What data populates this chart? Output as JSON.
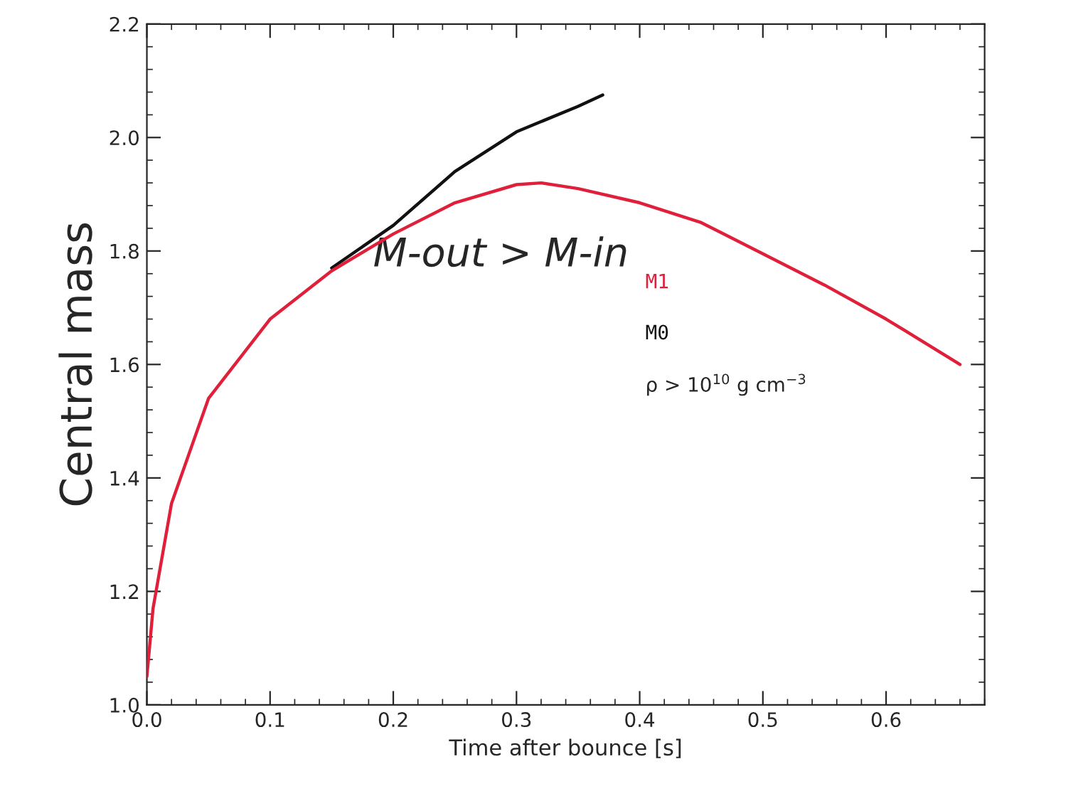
{
  "chart_data": {
    "type": "line",
    "xlabel": "Time after bounce [s]",
    "ylabel": "Central mass",
    "series": [
      {
        "name": "M1",
        "color": "#e0203a",
        "x": [
          0.0,
          0.005,
          0.02,
          0.05,
          0.1,
          0.15,
          0.2,
          0.25,
          0.3,
          0.32,
          0.35,
          0.4,
          0.45,
          0.5,
          0.55,
          0.6,
          0.66
        ],
        "values": [
          1.05,
          1.17,
          1.355,
          1.54,
          1.68,
          1.765,
          1.83,
          1.885,
          1.917,
          1.92,
          1.91,
          1.885,
          1.85,
          1.795,
          1.74,
          1.68,
          1.6
        ]
      },
      {
        "name": "M0",
        "color": "#111111",
        "x": [
          0.15,
          0.2,
          0.25,
          0.3,
          0.35,
          0.37
        ],
        "values": [
          1.77,
          1.845,
          1.94,
          2.01,
          2.055,
          2.075
        ]
      }
    ],
    "annotations": [
      "ρ > 10$^{10}$ g cm$^{−3}$",
      "M-out > M-in"
    ],
    "xlim": [
      0,
      0.68
    ],
    "xticks": [
      {
        "value": 0,
        "label": "0.0"
      },
      0.1,
      0.2,
      0.3,
      0.4,
      0.5,
      0.6
    ],
    "ylim": [
      1.0,
      2.2
    ],
    "yticks": [
      {
        "value": 1.0,
        "label": "1.0"
      },
      1.2,
      1.4,
      1.6,
      1.8,
      {
        "value": 2.0,
        "label": "2.0"
      },
      2.2
    ],
    "grid": false,
    "line_style": "solid"
  }
}
